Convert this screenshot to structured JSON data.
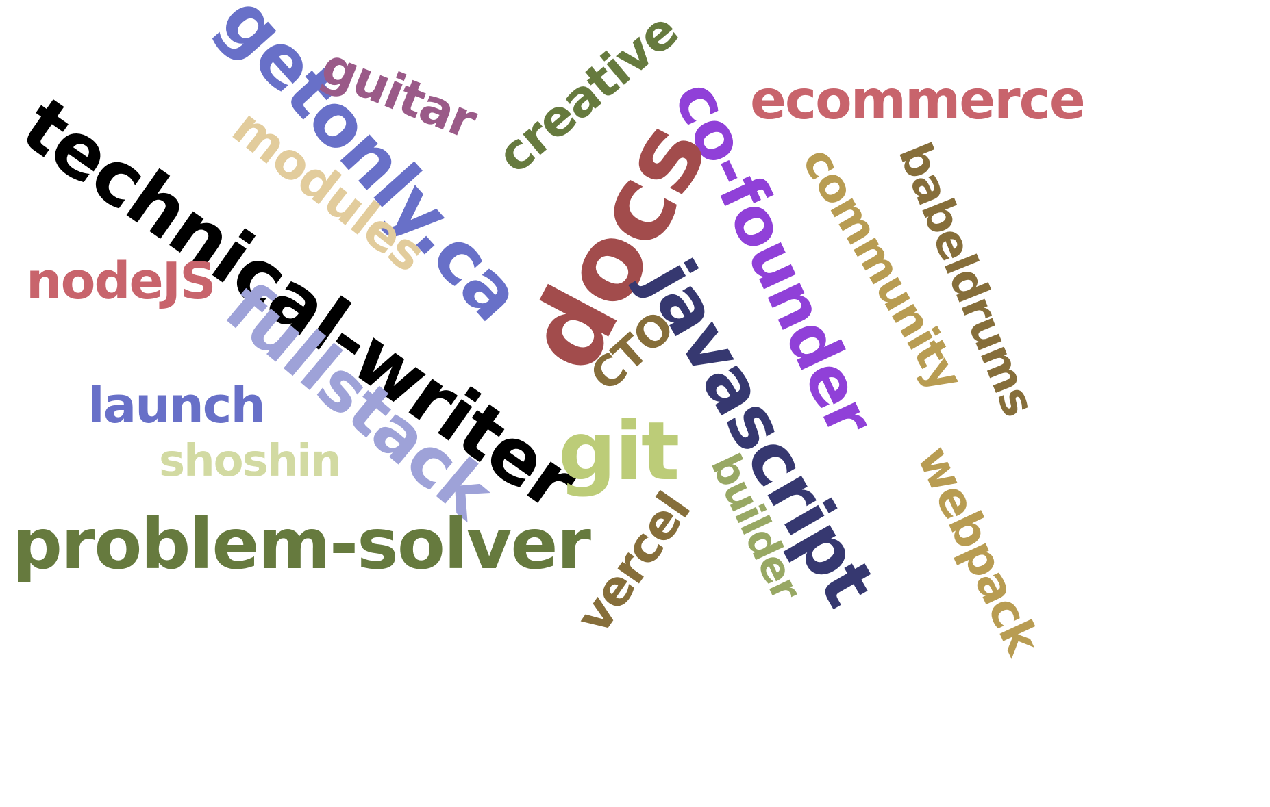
{
  "words": [
    {
      "text": "technical-writer",
      "color": "#000000"
    },
    {
      "text": "getonly.ca",
      "color": "#6870c8"
    },
    {
      "text": "guitar",
      "color": "#9a5a88"
    },
    {
      "text": "creative",
      "color": "#667a3e"
    },
    {
      "text": "co-founder",
      "color": "#9040d8"
    },
    {
      "text": "ecommerce",
      "color": "#c8646c"
    },
    {
      "text": "docs",
      "color": "#a24c4c"
    },
    {
      "text": "modules",
      "color": "#e2cc9c"
    },
    {
      "text": "javascript",
      "color": "#363870"
    },
    {
      "text": "community",
      "color": "#b89c52"
    },
    {
      "text": "babeldrums",
      "color": "#866e3a"
    },
    {
      "text": "nodeJS",
      "color": "#c8646c"
    },
    {
      "text": "fullstack",
      "color": "#9ea2d8"
    },
    {
      "text": "CTO",
      "color": "#866e3a"
    },
    {
      "text": "launch",
      "color": "#6870c8"
    },
    {
      "text": "git",
      "color": "#bccc78"
    },
    {
      "text": "shoshin",
      "color": "#d2daa2"
    },
    {
      "text": "builder",
      "color": "#98a864"
    },
    {
      "text": "webpack",
      "color": "#b89c52"
    },
    {
      "text": "problem-solver",
      "color": "#667a3e"
    },
    {
      "text": "vercel",
      "color": "#866e3a"
    }
  ]
}
